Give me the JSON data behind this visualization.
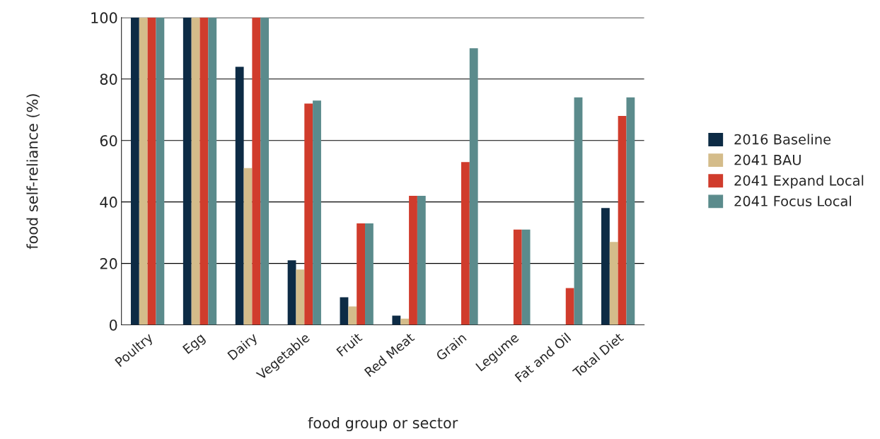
{
  "chart_data": {
    "type": "bar",
    "xlabel": "food group or sector",
    "ylabel": "food self-reliance (%)",
    "categories": [
      "Poultry",
      "Egg",
      "Dairy",
      "Vegetable",
      "Fruit",
      "Red Meat",
      "Grain",
      "Legume",
      "Fat and Oil",
      "Total Diet"
    ],
    "series": [
      {
        "name": "2016 Baseline",
        "color": "#0d2b45",
        "values": [
          100,
          100,
          84,
          21,
          9,
          3,
          null,
          null,
          null,
          38
        ]
      },
      {
        "name": "2041 BAU",
        "color": "#d4bc8a",
        "values": [
          100,
          100,
          51,
          18,
          6,
          2,
          null,
          null,
          null,
          27
        ]
      },
      {
        "name": "2041 Expand Local",
        "color": "#d03c2c",
        "values": [
          100,
          100,
          100,
          72,
          33,
          42,
          53,
          31,
          12,
          68
        ]
      },
      {
        "name": "2041 Focus Local",
        "color": "#5b8b8c",
        "values": [
          100,
          100,
          100,
          73,
          33,
          42,
          90,
          31,
          74,
          74
        ]
      }
    ],
    "ylim": [
      0,
      100
    ],
    "yticks": [
      0,
      20,
      40,
      60,
      80,
      100
    ],
    "grid": "y",
    "legend": "right"
  }
}
